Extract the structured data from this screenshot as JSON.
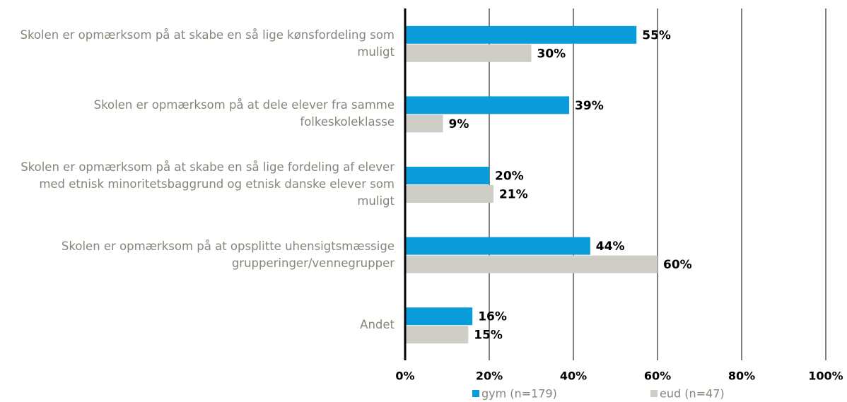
{
  "chart_data": {
    "type": "hbar",
    "categories": [
      "Skolen er opmærksom på at skabe en så lige kønsfordeling som muligt",
      "Skolen er opmærksom på at dele elever fra samme folkeskoleklasse",
      "Skolen er opmærksom på at skabe en så lige fordeling af elever med etnisk minoritetsbaggrund og etnisk danske elever som muligt",
      "Skolen er opmærksom på at opsplitte uhensigtsmæssige grupperinger/vennegrupper",
      "Andet"
    ],
    "series": [
      {
        "name": "gym (n=179)",
        "color": "#0a9bdb",
        "values": [
          55,
          39,
          20,
          44,
          16
        ],
        "value_labels": [
          "55%",
          "39%",
          "20%",
          "44%",
          "16%"
        ]
      },
      {
        "name": "eud (n=47)",
        "color": "#cfcec6",
        "values": [
          30,
          9,
          21,
          60,
          15
        ],
        "value_labels": [
          "30%",
          "9%",
          "21%",
          "60%",
          "15%"
        ]
      }
    ],
    "xlim": [
      0,
      100
    ],
    "xticks": [
      {
        "value": 0,
        "label": "0%"
      },
      {
        "value": 20,
        "label": "20%"
      },
      {
        "value": 40,
        "label": "40%"
      },
      {
        "value": 60,
        "label": "60%"
      },
      {
        "value": 80,
        "label": "80%"
      },
      {
        "value": 100,
        "label": "100%"
      }
    ],
    "grid": true,
    "legend": "bottom"
  }
}
